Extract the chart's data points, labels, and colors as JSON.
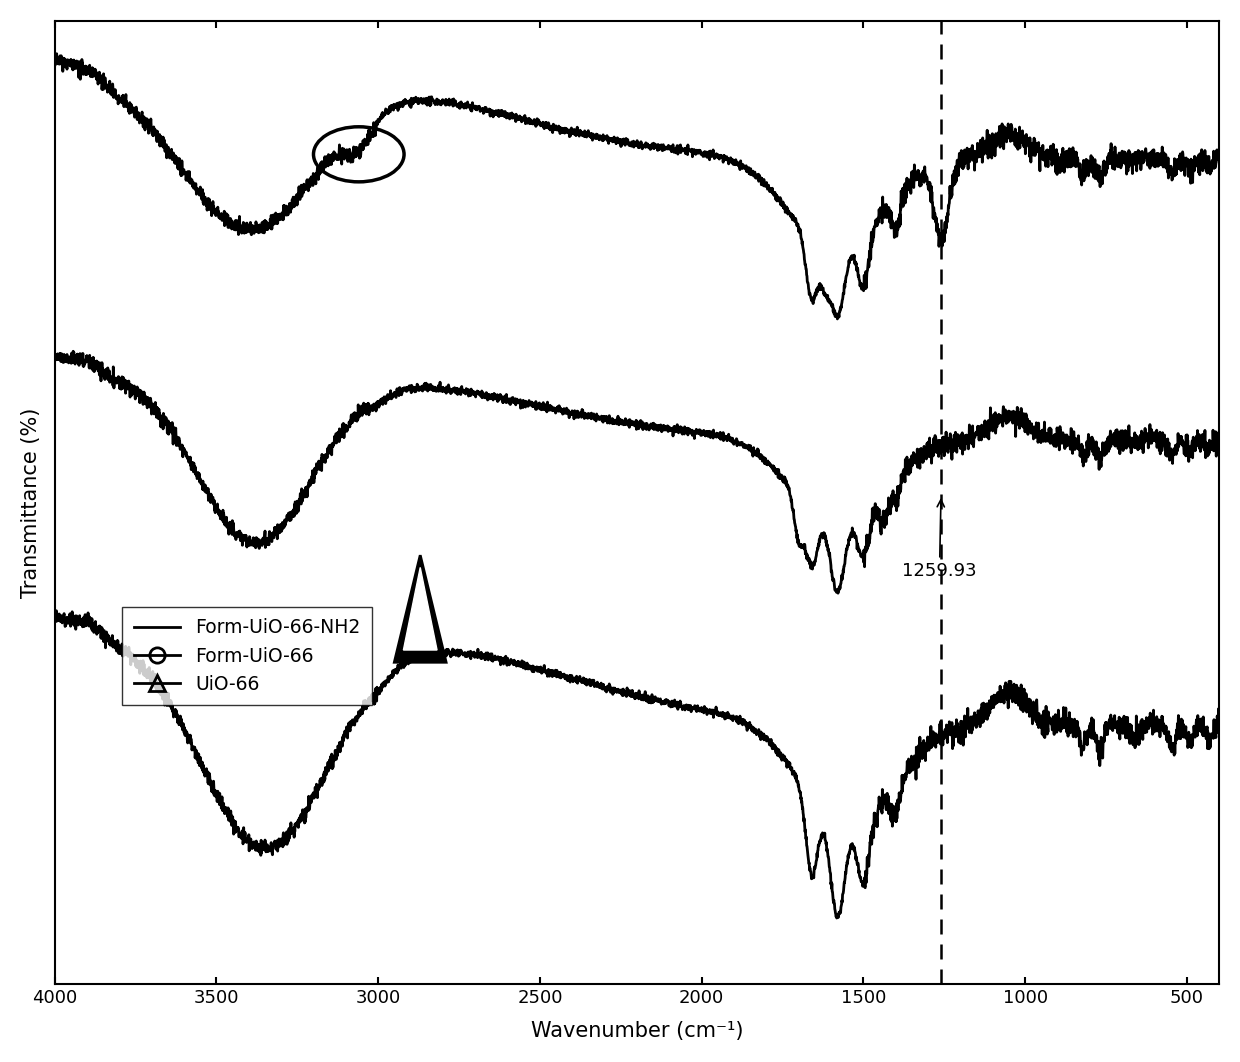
{
  "title": "",
  "xlabel": "Wavenumber (cm-1)",
  "ylabel": "Transmittance (%)",
  "xlim": [
    4000,
    400
  ],
  "dashed_line_x": 1259.93,
  "dashed_line_label": "1259.93",
  "background_color": "#ffffff",
  "line_color": "#000000",
  "legend_labels": [
    "Form-UiO-66-NH2",
    "Form-UiO-66",
    "UiO-66"
  ],
  "noise_seed": 42
}
